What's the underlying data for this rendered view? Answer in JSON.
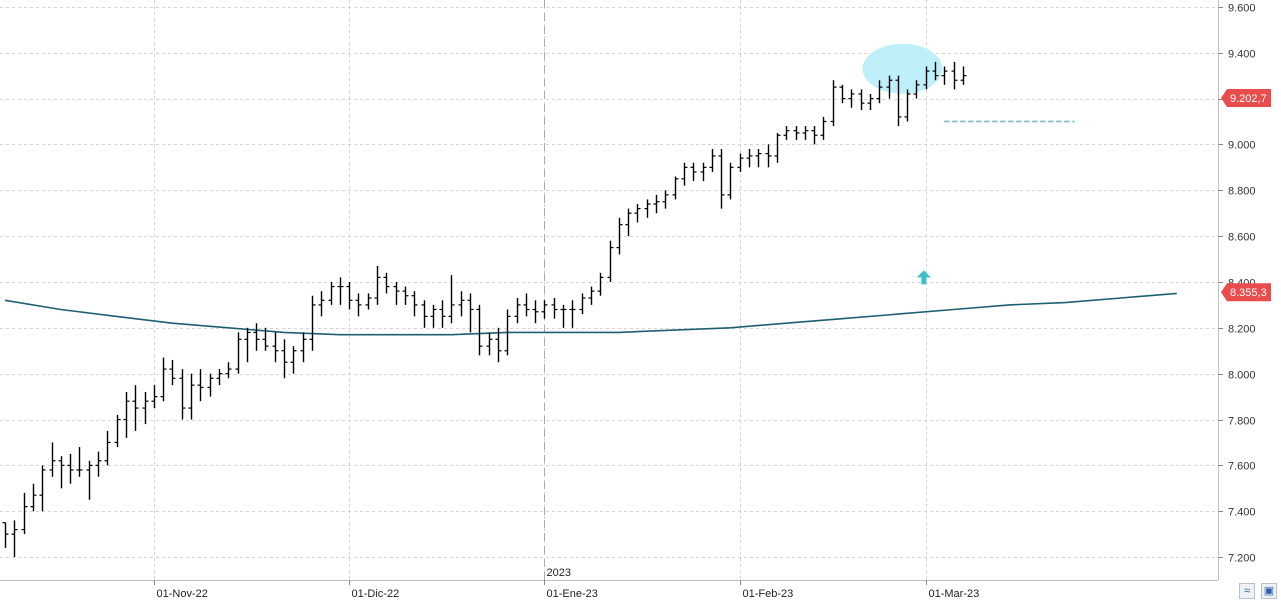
{
  "chart_data": {
    "type": "ohlc",
    "title": "",
    "xlabel": "",
    "ylabel": "",
    "ylim": [
      7.1,
      9.63
    ],
    "y_ticks": [
      "9.600",
      "9.400",
      "9.200",
      "9.000",
      "8.800",
      "8.600",
      "8.400",
      "8.200",
      "8.000",
      "7.800",
      "7.600",
      "7.400",
      "7.200"
    ],
    "x_labels": [
      {
        "label": "01-Nov-22",
        "index": 16
      },
      {
        "label": "01-Dic-22",
        "index": 37
      },
      {
        "label": "01-Ene-23",
        "index": 58
      },
      {
        "label": "01-Feb-23",
        "index": 79
      },
      {
        "label": "01-Mar-23",
        "index": 99
      }
    ],
    "year_marker": {
      "label": "2023",
      "index": 58
    },
    "bars": [
      [
        7.35,
        7.35,
        7.24,
        7.3
      ],
      [
        7.3,
        7.36,
        7.2,
        7.32
      ],
      [
        7.32,
        7.48,
        7.3,
        7.42
      ],
      [
        7.42,
        7.52,
        7.4,
        7.47
      ],
      [
        7.47,
        7.6,
        7.4,
        7.58
      ],
      [
        7.58,
        7.7,
        7.55,
        7.62
      ],
      [
        7.62,
        7.64,
        7.5,
        7.6
      ],
      [
        7.6,
        7.65,
        7.52,
        7.58
      ],
      [
        7.58,
        7.68,
        7.55,
        7.58
      ],
      [
        7.58,
        7.62,
        7.45,
        7.6
      ],
      [
        7.6,
        7.66,
        7.55,
        7.62
      ],
      [
        7.62,
        7.75,
        7.6,
        7.7
      ],
      [
        7.7,
        7.82,
        7.68,
        7.8
      ],
      [
        7.8,
        7.92,
        7.72,
        7.88
      ],
      [
        7.88,
        7.95,
        7.75,
        7.85
      ],
      [
        7.85,
        7.92,
        7.78,
        7.88
      ],
      [
        7.88,
        7.95,
        7.85,
        7.9
      ],
      [
        7.9,
        8.07,
        7.88,
        8.02
      ],
      [
        8.02,
        8.06,
        7.95,
        7.98
      ],
      [
        7.98,
        8.02,
        7.8,
        7.85
      ],
      [
        7.85,
        8.0,
        7.8,
        7.95
      ],
      [
        7.95,
        8.02,
        7.88,
        7.94
      ],
      [
        7.94,
        8.0,
        7.9,
        7.98
      ],
      [
        7.98,
        8.02,
        7.95,
        8.0
      ],
      [
        8.0,
        8.05,
        7.98,
        8.02
      ],
      [
        8.02,
        8.18,
        8.0,
        8.15
      ],
      [
        8.15,
        8.2,
        8.05,
        8.18
      ],
      [
        8.18,
        8.22,
        8.1,
        8.15
      ],
      [
        8.15,
        8.2,
        8.1,
        8.12
      ],
      [
        8.12,
        8.18,
        8.05,
        8.1
      ],
      [
        8.1,
        8.15,
        7.98,
        8.05
      ],
      [
        8.05,
        8.12,
        8.0,
        8.1
      ],
      [
        8.1,
        8.18,
        8.05,
        8.15
      ],
      [
        8.15,
        8.34,
        8.1,
        8.3
      ],
      [
        8.3,
        8.36,
        8.25,
        8.32
      ],
      [
        8.32,
        8.4,
        8.3,
        8.38
      ],
      [
        8.38,
        8.42,
        8.3,
        8.38
      ],
      [
        8.38,
        8.4,
        8.28,
        8.32
      ],
      [
        8.32,
        8.35,
        8.25,
        8.3
      ],
      [
        8.3,
        8.35,
        8.28,
        8.33
      ],
      [
        8.33,
        8.47,
        8.3,
        8.42
      ],
      [
        8.42,
        8.44,
        8.35,
        8.38
      ],
      [
        8.38,
        8.4,
        8.3,
        8.36
      ],
      [
        8.36,
        8.38,
        8.3,
        8.34
      ],
      [
        8.34,
        8.36,
        8.25,
        8.3
      ],
      [
        8.3,
        8.32,
        8.2,
        8.25
      ],
      [
        8.25,
        8.3,
        8.2,
        8.28
      ],
      [
        8.28,
        8.32,
        8.2,
        8.25
      ],
      [
        8.25,
        8.43,
        8.22,
        8.3
      ],
      [
        8.3,
        8.36,
        8.25,
        8.32
      ],
      [
        8.32,
        8.35,
        8.18,
        8.28
      ],
      [
        8.28,
        8.3,
        8.08,
        8.12
      ],
      [
        8.12,
        8.18,
        8.08,
        8.15
      ],
      [
        8.15,
        8.2,
        8.05,
        8.1
      ],
      [
        8.1,
        8.28,
        8.08,
        8.25
      ],
      [
        8.25,
        8.33,
        8.22,
        8.3
      ],
      [
        8.3,
        8.35,
        8.25,
        8.28
      ],
      [
        8.28,
        8.32,
        8.22,
        8.27
      ],
      [
        8.27,
        8.32,
        8.24,
        8.3
      ],
      [
        8.3,
        8.33,
        8.24,
        8.28
      ],
      [
        8.28,
        8.3,
        8.2,
        8.28
      ],
      [
        8.28,
        8.32,
        8.2,
        8.28
      ],
      [
        8.28,
        8.35,
        8.26,
        8.33
      ],
      [
        8.33,
        8.38,
        8.3,
        8.36
      ],
      [
        8.36,
        8.44,
        8.34,
        8.42
      ],
      [
        8.42,
        8.58,
        8.4,
        8.55
      ],
      [
        8.55,
        8.68,
        8.52,
        8.65
      ],
      [
        8.65,
        8.72,
        8.6,
        8.7
      ],
      [
        8.7,
        8.74,
        8.66,
        8.72
      ],
      [
        8.72,
        8.76,
        8.68,
        8.74
      ],
      [
        8.74,
        8.78,
        8.7,
        8.75
      ],
      [
        8.75,
        8.8,
        8.72,
        8.78
      ],
      [
        8.78,
        8.86,
        8.76,
        8.85
      ],
      [
        8.85,
        8.92,
        8.82,
        8.9
      ],
      [
        8.9,
        8.92,
        8.84,
        8.88
      ],
      [
        8.88,
        8.92,
        8.84,
        8.9
      ],
      [
        8.9,
        8.98,
        8.88,
        8.95
      ],
      [
        8.95,
        8.98,
        8.72,
        8.78
      ],
      [
        8.78,
        8.92,
        8.76,
        8.9
      ],
      [
        8.9,
        8.96,
        8.88,
        8.94
      ],
      [
        8.94,
        8.98,
        8.9,
        8.95
      ],
      [
        8.95,
        8.98,
        8.9,
        8.96
      ],
      [
        8.96,
        9.0,
        8.9,
        8.95
      ],
      [
        8.95,
        9.05,
        8.92,
        9.04
      ],
      [
        9.04,
        9.08,
        9.02,
        9.06
      ],
      [
        9.06,
        9.08,
        9.02,
        9.05
      ],
      [
        9.05,
        9.08,
        9.02,
        9.06
      ],
      [
        9.06,
        9.08,
        9.0,
        9.04
      ],
      [
        9.04,
        9.12,
        9.02,
        9.1
      ],
      [
        9.1,
        9.28,
        9.08,
        9.25
      ],
      [
        9.25,
        9.26,
        9.18,
        9.2
      ],
      [
        9.2,
        9.24,
        9.16,
        9.22
      ],
      [
        9.22,
        9.24,
        9.15,
        9.18
      ],
      [
        9.18,
        9.22,
        9.15,
        9.2
      ],
      [
        9.2,
        9.28,
        9.18,
        9.25
      ],
      [
        9.25,
        9.3,
        9.2,
        9.28
      ],
      [
        9.28,
        9.3,
        9.08,
        9.12
      ],
      [
        9.12,
        9.24,
        9.1,
        9.22
      ],
      [
        9.22,
        9.28,
        9.2,
        9.26
      ],
      [
        9.26,
        9.34,
        9.24,
        9.32
      ],
      [
        9.32,
        9.36,
        9.28,
        9.3
      ],
      [
        9.3,
        9.34,
        9.26,
        9.32
      ],
      [
        9.32,
        9.36,
        9.24,
        9.28
      ],
      [
        9.28,
        9.34,
        9.26,
        9.3
      ]
    ],
    "moving_average": [
      [
        0,
        8.32
      ],
      [
        6,
        8.28
      ],
      [
        12,
        8.25
      ],
      [
        18,
        8.22
      ],
      [
        24,
        8.2
      ],
      [
        30,
        8.18
      ],
      [
        36,
        8.17
      ],
      [
        42,
        8.17
      ],
      [
        48,
        8.17
      ],
      [
        54,
        8.18
      ],
      [
        60,
        8.18
      ],
      [
        66,
        8.18
      ],
      [
        72,
        8.19
      ],
      [
        78,
        8.2
      ],
      [
        84,
        8.22
      ],
      [
        90,
        8.24
      ],
      [
        96,
        8.26
      ],
      [
        102,
        8.28
      ],
      [
        108,
        8.3
      ],
      [
        114,
        8.31
      ],
      [
        120,
        8.33
      ],
      [
        126,
        8.35
      ]
    ],
    "resistance_level": 9.1,
    "price_tags": [
      {
        "label": "9.202,7",
        "value": 9.2027
      },
      {
        "label": "8.355,3",
        "value": 8.3553
      }
    ],
    "colors": {
      "bars": "#000000",
      "moving_average": "#1e5f74",
      "resistance_line": "#7fbcd6",
      "highlight_ellipse": "#bff0fa",
      "arrow": "#3cc0c8",
      "price_tag": "#e84c4c",
      "grid": "#d4d4d4"
    },
    "legend": "none",
    "grid": true
  },
  "buttons": {
    "zoom_icon": "zoom-wave-icon",
    "save_icon": "floppy-disk-icon"
  }
}
